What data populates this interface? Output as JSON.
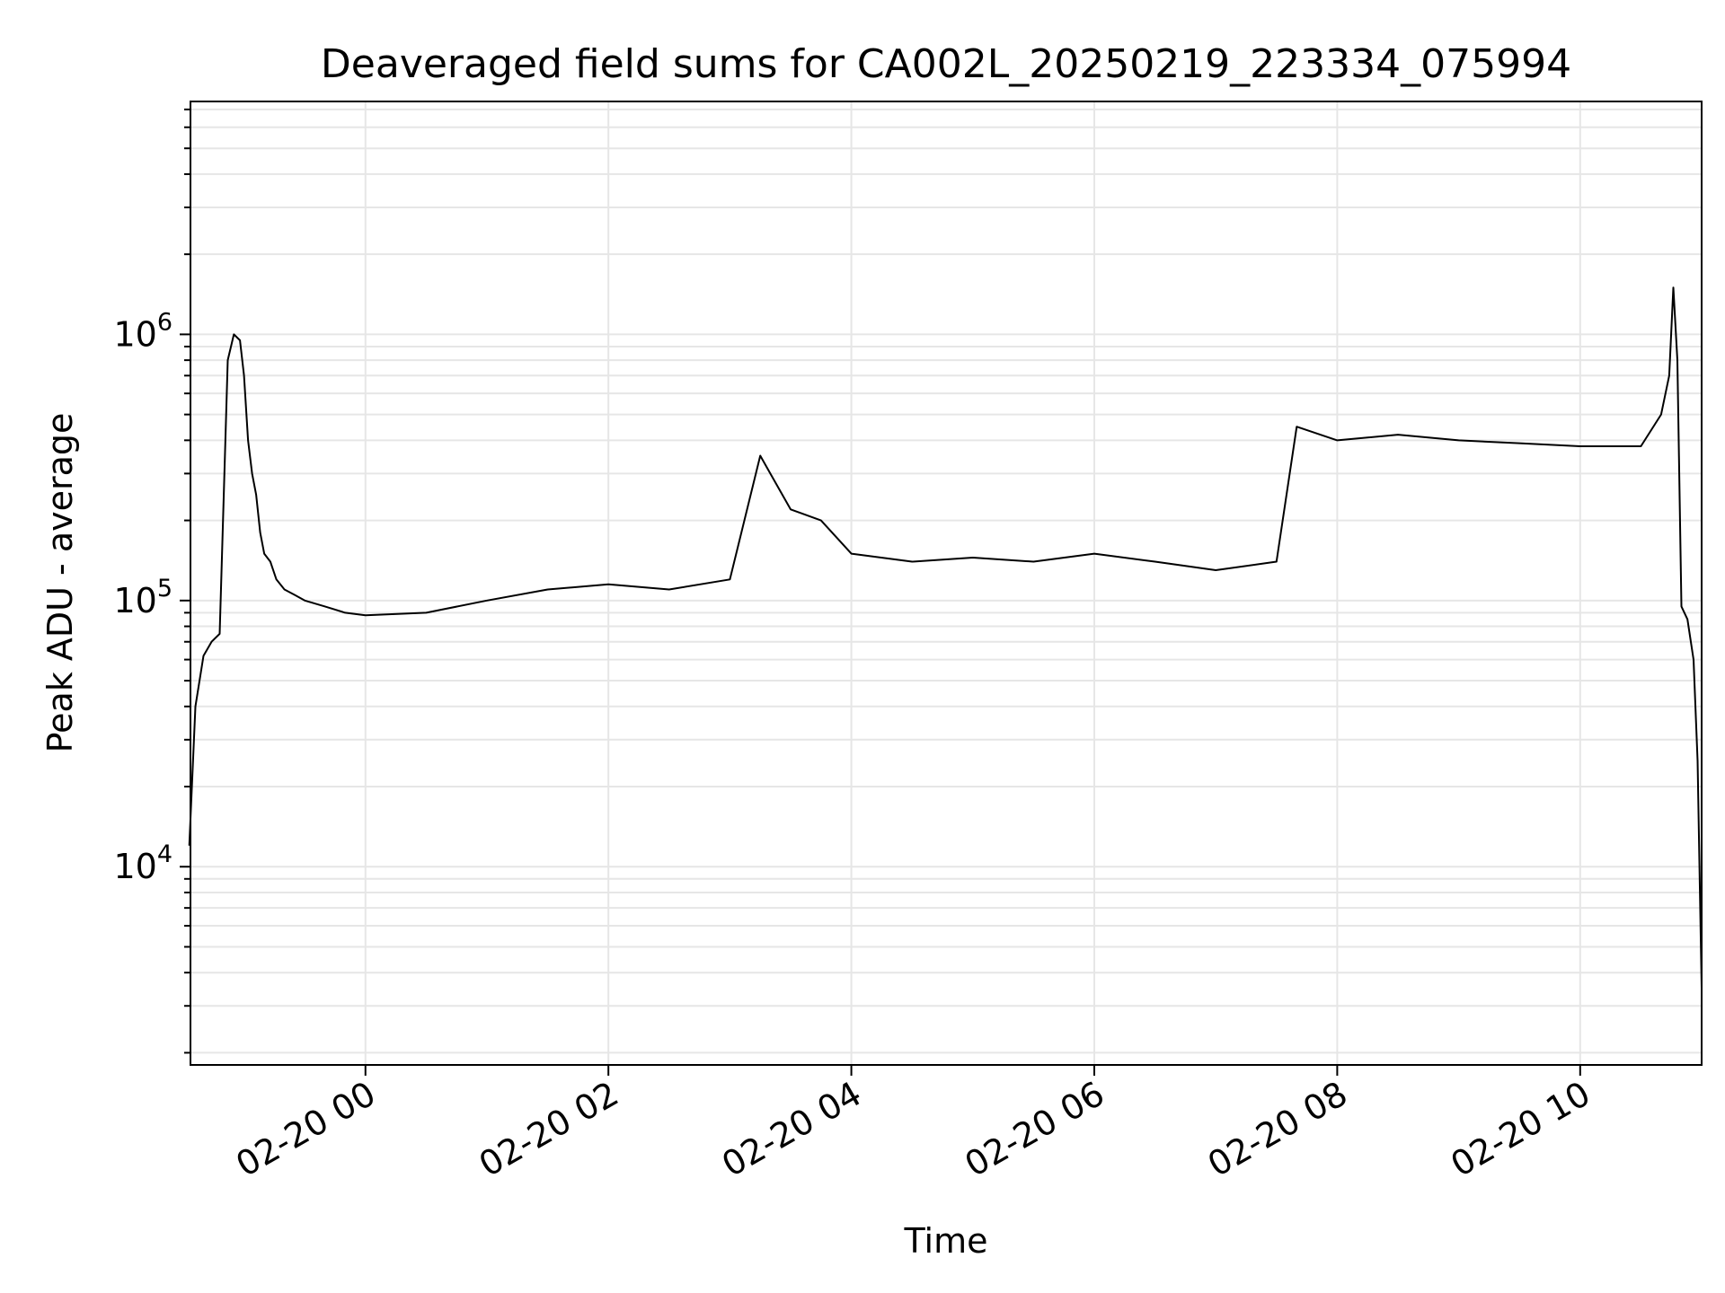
{
  "chart_data": {
    "type": "line",
    "title": "Deaveraged field sums for CA002L_20250219_223334_075994",
    "xlabel": "Time",
    "ylabel": "Peak ADU - average",
    "x_axis_type": "datetime",
    "xlim": [
      "2025-02-19 22:33:34",
      "2025-02-20 11:00:00"
    ],
    "yscale": "log",
    "ylim": [
      1800,
      7500000
    ],
    "grid": "on",
    "x_ticks": [
      {
        "value": "2025-02-20 00:00",
        "label": "02-20 00"
      },
      {
        "value": "2025-02-20 02:00",
        "label": "02-20 02"
      },
      {
        "value": "2025-02-20 04:00",
        "label": "02-20 04"
      },
      {
        "value": "2025-02-20 06:00",
        "label": "02-20 06"
      },
      {
        "value": "2025-02-20 08:00",
        "label": "02-20 08"
      },
      {
        "value": "2025-02-20 10:00",
        "label": "02-20 10"
      }
    ],
    "y_ticks": [
      {
        "value": 10000,
        "base": "10",
        "exp": "4"
      },
      {
        "value": 100000,
        "base": "10",
        "exp": "5"
      },
      {
        "value": 1000000,
        "base": "10",
        "exp": "6"
      }
    ],
    "line_color": "#000000",
    "series": [
      {
        "x": [
          "2025-02-19 22:33",
          "2025-02-19 22:36",
          "2025-02-19 22:40",
          "2025-02-19 22:44",
          "2025-02-19 22:48",
          "2025-02-19 22:52",
          "2025-02-19 22:55",
          "2025-02-19 22:58",
          "2025-02-19 23:00",
          "2025-02-19 23:02",
          "2025-02-19 23:04",
          "2025-02-19 23:06",
          "2025-02-19 23:08",
          "2025-02-19 23:10",
          "2025-02-19 23:13",
          "2025-02-19 23:16",
          "2025-02-19 23:20",
          "2025-02-19 23:25",
          "2025-02-19 23:30",
          "2025-02-19 23:40",
          "2025-02-19 23:50",
          "2025-02-20 00:00",
          "2025-02-20 00:30",
          "2025-02-20 01:00",
          "2025-02-20 01:30",
          "2025-02-20 02:00",
          "2025-02-20 02:30",
          "2025-02-20 03:00",
          "2025-02-20 03:15",
          "2025-02-20 03:20",
          "2025-02-20 03:30",
          "2025-02-20 03:45",
          "2025-02-20 04:00",
          "2025-02-20 04:30",
          "2025-02-20 05:00",
          "2025-02-20 05:30",
          "2025-02-20 06:00",
          "2025-02-20 06:30",
          "2025-02-20 07:00",
          "2025-02-20 07:30",
          "2025-02-20 07:40",
          "2025-02-20 08:00",
          "2025-02-20 08:30",
          "2025-02-20 09:00",
          "2025-02-20 09:30",
          "2025-02-20 10:00",
          "2025-02-20 10:30",
          "2025-02-20 10:40",
          "2025-02-20 10:44",
          "2025-02-20 10:46",
          "2025-02-20 10:48",
          "2025-02-20 10:50",
          "2025-02-20 10:53",
          "2025-02-20 10:56",
          "2025-02-20 10:58",
          "2025-02-20 11:00"
        ],
        "y": [
          12000,
          40000,
          62000,
          70000,
          75000,
          800000,
          1000000,
          950000,
          700000,
          400000,
          300000,
          250000,
          180000,
          150000,
          140000,
          120000,
          110000,
          105000,
          100000,
          95000,
          90000,
          88000,
          90000,
          100000,
          110000,
          115000,
          110000,
          120000,
          350000,
          300000,
          220000,
          200000,
          150000,
          140000,
          145000,
          140000,
          150000,
          140000,
          130000,
          140000,
          450000,
          400000,
          420000,
          400000,
          390000,
          380000,
          380000,
          500000,
          700000,
          1500000,
          800000,
          95000,
          85000,
          60000,
          25000,
          3500
        ]
      }
    ]
  }
}
